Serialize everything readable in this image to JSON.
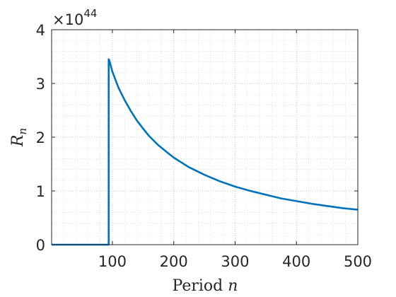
{
  "chart_data": {
    "type": "line",
    "title": "",
    "xlabel_text": "Period ",
    "xlabel_var": "n",
    "ylabel_main": "R",
    "ylabel_sub": "n",
    "exponent_prefix": "×10",
    "exponent_power": "44",
    "xlim": [
      1,
      500
    ],
    "ylim": [
      0,
      4
    ],
    "xticks": [
      100,
      200,
      300,
      400,
      500
    ],
    "yticks": [
      0,
      1,
      2,
      3,
      4
    ],
    "grid": "on (major and minor, dotted)",
    "series": [
      {
        "color": "#0072BD",
        "x": [
          1,
          94,
          94,
          95,
          100,
          110,
          120,
          130,
          140,
          150,
          160,
          175,
          190,
          200,
          225,
          250,
          275,
          300,
          325,
          350,
          375,
          400,
          425,
          450,
          475,
          500
        ],
        "y": [
          0,
          0,
          3.45,
          3.43,
          3.22,
          2.92,
          2.69,
          2.49,
          2.31,
          2.16,
          2.02,
          1.85,
          1.71,
          1.62,
          1.44,
          1.3,
          1.18,
          1.08,
          1.0,
          0.93,
          0.86,
          0.81,
          0.76,
          0.72,
          0.68,
          0.65
        ]
      }
    ]
  }
}
